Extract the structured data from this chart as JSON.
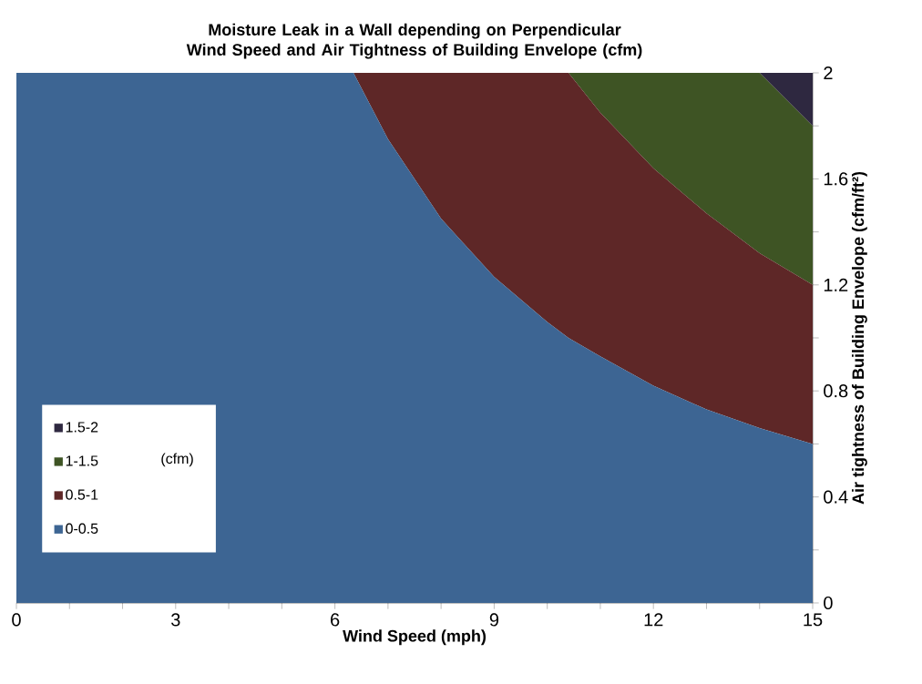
{
  "chart_data": {
    "type": "area",
    "stacked": true,
    "title": "Moisture Leak in a Wall depending on Perpendicular Wind Speed and Air Tightness of Building Envelope (cfm)",
    "xlabel": "Wind Speed (mph)",
    "ylabel": "Air tightness of Building Envelope (cfm/ft²)",
    "legend_title": "(cfm)",
    "legend": "bottom left",
    "x": [
      0,
      6.35,
      7,
      8,
      9,
      10,
      10.4,
      11,
      12,
      13,
      14,
      15
    ],
    "series": [
      {
        "name": "0-0.5",
        "color": "#3d6593",
        "values": [
          2,
          2,
          1.75,
          1.45,
          1.23,
          1.06,
          1.0,
          0.93,
          0.82,
          0.73,
          0.66,
          0.6
        ]
      },
      {
        "name": "0.5-1",
        "color": "#5e2727",
        "values": [
          0,
          0,
          0.25,
          0.55,
          0.77,
          0.94,
          1.0,
          0.92,
          0.82,
          0.74,
          0.66,
          0.6
        ]
      },
      {
        "name": "1-1.5",
        "color": "#3e5424",
        "values": [
          0,
          0,
          0,
          0,
          0,
          0,
          0,
          0.15,
          0.36,
          0.53,
          0.68,
          0.6
        ]
      },
      {
        "name": "1.5-2",
        "color": "#2e2840",
        "values": [
          0,
          0,
          0,
          0,
          0,
          0,
          0,
          0,
          0,
          0,
          0,
          0.2
        ]
      }
    ],
    "xlim": [
      0,
      15
    ],
    "ylim": [
      0,
      2
    ],
    "xticks": [
      0,
      {
        "value": 1,
        "label": null
      },
      {
        "value": 2,
        "label": null
      },
      3,
      {
        "value": 4,
        "label": null
      },
      {
        "value": 5,
        "label": null
      },
      6,
      {
        "value": 7,
        "label": null
      },
      {
        "value": 8,
        "label": null
      },
      9,
      {
        "value": 10,
        "label": null
      },
      {
        "value": 11,
        "label": null
      },
      12,
      {
        "value": 13,
        "label": null
      },
      {
        "value": 14,
        "label": null
      },
      15
    ],
    "yticks": [
      0,
      {
        "value": 0.2,
        "label": null
      },
      0.4,
      {
        "value": 0.6,
        "label": null
      },
      0.8,
      {
        "value": 1.0,
        "label": null
      },
      1.2,
      {
        "value": 1.4,
        "label": null
      },
      1.6,
      {
        "value": 1.8,
        "label": null
      },
      2
    ]
  }
}
